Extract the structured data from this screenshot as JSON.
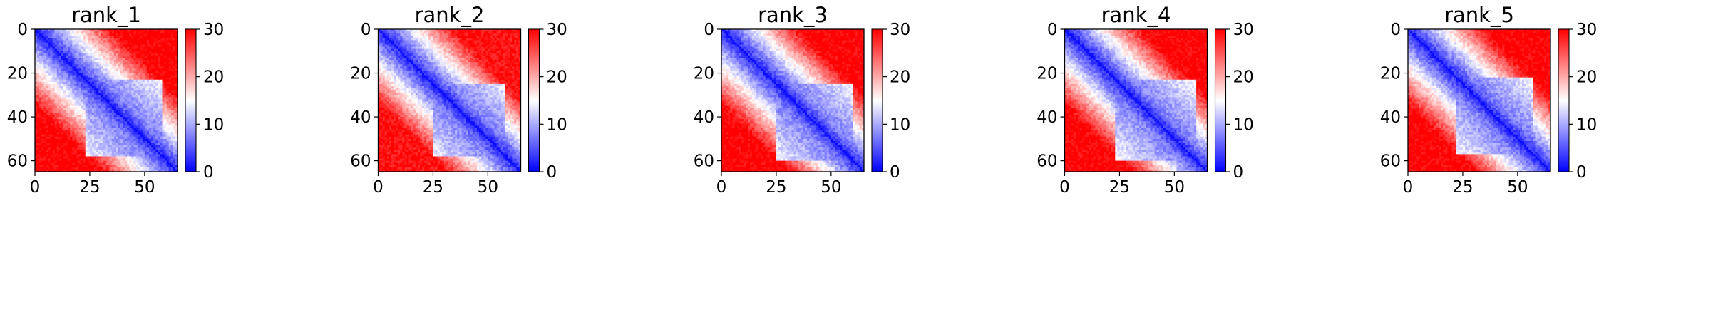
{
  "chart_data": [
    {
      "type": "heatmap",
      "title": "rank_1",
      "grid_size": 65,
      "x_ticks": [
        0,
        25,
        50
      ],
      "y_ticks": [
        0,
        20,
        40,
        60
      ],
      "colorbar": {
        "min": 0,
        "max": 30,
        "ticks": [
          0,
          10,
          20,
          30
        ]
      },
      "colormap": [
        "#0000ff",
        "#ffffff",
        "#ff0000"
      ],
      "pae_model": {
        "background_max": 30,
        "cluster_center": 40,
        "cluster_halfwidth": 17,
        "cluster_value": 6
      }
    },
    {
      "type": "heatmap",
      "title": "rank_2",
      "grid_size": 65,
      "x_ticks": [
        0,
        25,
        50
      ],
      "y_ticks": [
        0,
        20,
        40,
        60
      ],
      "colorbar": {
        "min": 0,
        "max": 30,
        "ticks": [
          0,
          10,
          20,
          30
        ]
      },
      "colormap": [
        "#0000ff",
        "#ffffff",
        "#ff0000"
      ],
      "pae_model": {
        "background_max": 29,
        "cluster_center": 41,
        "cluster_halfwidth": 16,
        "cluster_value": 6
      }
    },
    {
      "type": "heatmap",
      "title": "rank_3",
      "grid_size": 65,
      "x_ticks": [
        0,
        25,
        50
      ],
      "y_ticks": [
        0,
        20,
        40,
        60
      ],
      "colorbar": {
        "min": 0,
        "max": 30,
        "ticks": [
          0,
          10,
          20,
          30
        ]
      },
      "colormap": [
        "#0000ff",
        "#ffffff",
        "#ff0000"
      ],
      "pae_model": {
        "background_max": 30,
        "cluster_center": 42,
        "cluster_halfwidth": 17,
        "cluster_value": 6
      }
    },
    {
      "type": "heatmap",
      "title": "rank_4",
      "grid_size": 65,
      "x_ticks": [
        0,
        25,
        50
      ],
      "y_ticks": [
        0,
        20,
        40,
        60
      ],
      "colorbar": {
        "min": 0,
        "max": 30,
        "ticks": [
          0,
          10,
          20,
          30
        ]
      },
      "colormap": [
        "#0000ff",
        "#ffffff",
        "#ff0000"
      ],
      "pae_model": {
        "background_max": 30,
        "cluster_center": 41,
        "cluster_halfwidth": 18,
        "cluster_value": 6
      }
    },
    {
      "type": "heatmap",
      "title": "rank_5",
      "grid_size": 65,
      "x_ticks": [
        0,
        25,
        50
      ],
      "y_ticks": [
        0,
        20,
        40,
        60
      ],
      "colorbar": {
        "min": 0,
        "max": 30,
        "ticks": [
          0,
          10,
          20,
          30
        ]
      },
      "colormap": [
        "#0000ff",
        "#ffffff",
        "#ff0000"
      ],
      "pae_model": {
        "background_max": 30,
        "cluster_center": 39,
        "cluster_halfwidth": 17,
        "cluster_value": 6
      }
    }
  ]
}
